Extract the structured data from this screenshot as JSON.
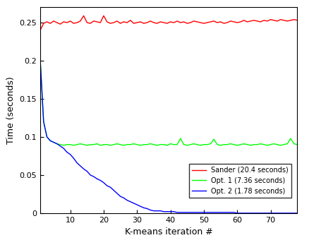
{
  "chart_data": {
    "type": "line",
    "x_label": "K-means iteration #",
    "y_label": "Time (seconds)",
    "x": [
      1,
      2,
      3,
      4,
      5,
      6,
      7,
      8,
      9,
      10,
      11,
      12,
      13,
      14,
      15,
      16,
      17,
      18,
      19,
      20,
      21,
      22,
      23,
      24,
      25,
      26,
      27,
      28,
      29,
      30,
      31,
      32,
      33,
      34,
      35,
      36,
      37,
      38,
      39,
      40,
      41,
      42,
      43,
      44,
      45,
      46,
      47,
      48,
      49,
      50,
      51,
      52,
      53,
      54,
      55,
      56,
      57,
      58,
      59,
      60,
      61,
      62,
      63,
      64,
      65,
      66,
      67,
      68,
      69,
      70,
      71,
      72,
      73,
      74,
      75,
      76,
      77,
      78
    ],
    "series": [
      {
        "name": "Sander (20.4 seconds)",
        "color": "#ff0000",
        "values": [
          0.24,
          0.249,
          0.251,
          0.249,
          0.252,
          0.25,
          0.248,
          0.251,
          0.25,
          0.252,
          0.249,
          0.25,
          0.252,
          0.259,
          0.25,
          0.249,
          0.252,
          0.251,
          0.25,
          0.259,
          0.251,
          0.249,
          0.25,
          0.252,
          0.249,
          0.251,
          0.25,
          0.253,
          0.249,
          0.25,
          0.251,
          0.249,
          0.25,
          0.252,
          0.25,
          0.249,
          0.251,
          0.25,
          0.249,
          0.251,
          0.25,
          0.252,
          0.25,
          0.251,
          0.249,
          0.25,
          0.252,
          0.251,
          0.25,
          0.249,
          0.25,
          0.251,
          0.252,
          0.25,
          0.251,
          0.249,
          0.25,
          0.252,
          0.251,
          0.25,
          0.251,
          0.253,
          0.251,
          0.252,
          0.253,
          0.252,
          0.251,
          0.253,
          0.252,
          0.254,
          0.253,
          0.252,
          0.254,
          0.253,
          0.252,
          0.253,
          0.254,
          0.253
        ]
      },
      {
        "name": "Opt. 1 (7.36 seconds)",
        "color": "#00ff00",
        "values": [
          0.2,
          0.12,
          0.1,
          0.095,
          0.093,
          0.091,
          0.09,
          0.089,
          0.09,
          0.09,
          0.089,
          0.09,
          0.091,
          0.09,
          0.089,
          0.09,
          0.09,
          0.091,
          0.089,
          0.09,
          0.09,
          0.089,
          0.09,
          0.091,
          0.09,
          0.089,
          0.09,
          0.09,
          0.091,
          0.09,
          0.089,
          0.09,
          0.09,
          0.091,
          0.09,
          0.089,
          0.09,
          0.09,
          0.089,
          0.091,
          0.09,
          0.09,
          0.098,
          0.09,
          0.089,
          0.09,
          0.091,
          0.09,
          0.089,
          0.09,
          0.09,
          0.091,
          0.097,
          0.09,
          0.089,
          0.09,
          0.09,
          0.091,
          0.09,
          0.089,
          0.09,
          0.091,
          0.09,
          0.089,
          0.09,
          0.09,
          0.091,
          0.09,
          0.089,
          0.09,
          0.091,
          0.09,
          0.089,
          0.09,
          0.091,
          0.098,
          0.091,
          0.09
        ]
      },
      {
        "name": "Opt. 2 (1.78 seconds)",
        "color": "#0000ff",
        "values": [
          0.2,
          0.12,
          0.1,
          0.095,
          0.093,
          0.091,
          0.088,
          0.085,
          0.08,
          0.077,
          0.072,
          0.066,
          0.062,
          0.058,
          0.055,
          0.05,
          0.048,
          0.045,
          0.043,
          0.04,
          0.036,
          0.034,
          0.03,
          0.026,
          0.022,
          0.02,
          0.017,
          0.015,
          0.013,
          0.011,
          0.009,
          0.007,
          0.006,
          0.004,
          0.003,
          0.003,
          0.003,
          0.002,
          0.002,
          0.002,
          0.002,
          0.001,
          0.001,
          0.001,
          0.001,
          0.001,
          0.001,
          0.001,
          0.001,
          0.001,
          0.001,
          0.001,
          0.001,
          0.001,
          0.001,
          0.001,
          0.001,
          0.001,
          0.001,
          0.0,
          0.0,
          0.0,
          0.0,
          0.0,
          0.0,
          0.0,
          0.0,
          0.0,
          0.0,
          0.0,
          0.0,
          0.0,
          0.0,
          0.0,
          0.0,
          0.0,
          0.0,
          0.0
        ]
      }
    ],
    "xlim": [
      1,
      78
    ],
    "xticks": [
      10,
      20,
      30,
      40,
      50,
      60,
      70
    ],
    "ylim": [
      0,
      0.27
    ],
    "yticks": [
      0,
      0.05,
      0.1,
      0.15,
      0.2,
      0.25
    ],
    "grid": false,
    "legend": "lower right"
  }
}
